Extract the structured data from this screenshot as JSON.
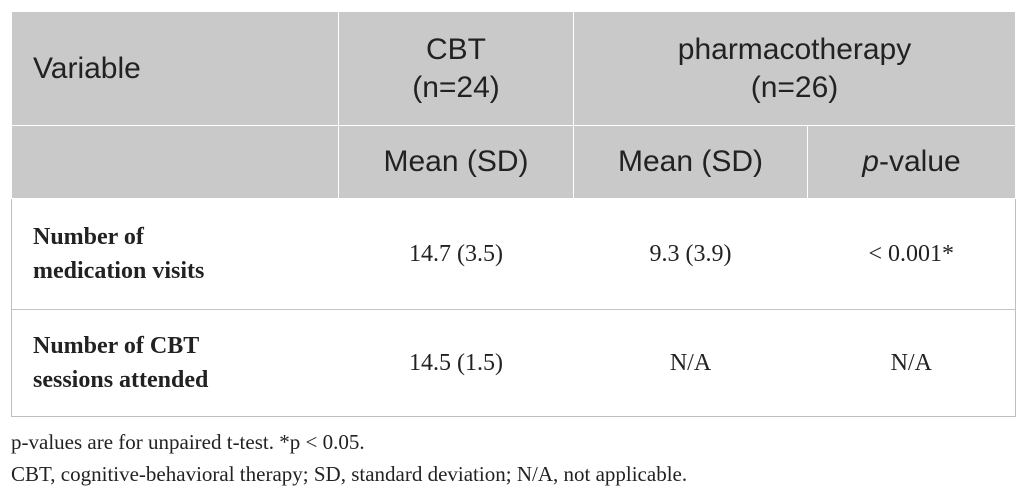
{
  "table": {
    "header": {
      "variable": "Variable",
      "group1_name": "CBT",
      "group1_n": "(n=24)",
      "group2_name": "pharmacotherapy",
      "group2_n": "(n=26)",
      "mean_sd_1": "Mean (SD)",
      "mean_sd_2": "Mean (SD)",
      "pvalue_italic": "p",
      "pvalue_rest": "-value"
    },
    "rows": [
      {
        "label_line1": "Number of",
        "label_line2": "medication visits",
        "cbt": "14.7 (3.5)",
        "pharma": "9.3 (3.9)",
        "p": "< 0.001*"
      },
      {
        "label_line1": "Number of CBT",
        "label_line2": "sessions attended",
        "cbt": "14.5 (1.5)",
        "pharma": "N/A",
        "p": "N/A"
      }
    ]
  },
  "footnotes": [
    "p-values are for unpaired t-test. *p < 0.05.",
    "CBT, cognitive-behavioral therapy; SD, standard deviation; N/A, not applicable."
  ]
}
